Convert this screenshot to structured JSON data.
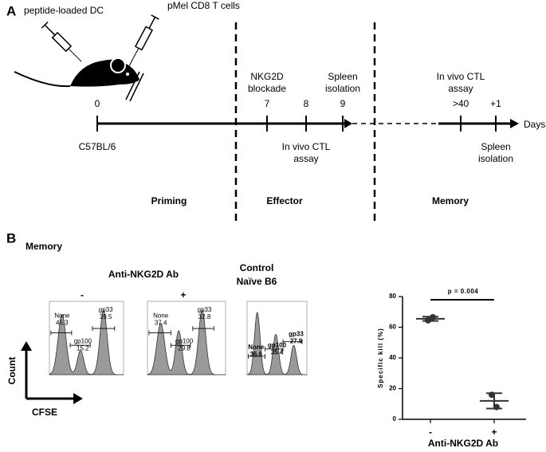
{
  "panel_a": {
    "label": "A",
    "injections": [
      "peptide-loaded DC",
      "pMel CD8 T cells"
    ],
    "timeline": {
      "ticks": [
        "0",
        "7",
        "8",
        "9",
        ">40",
        "+1"
      ],
      "unit": "Days",
      "strain": "C57BL/6",
      "events": [
        {
          "lines": [
            "NKG2D",
            "blockade"
          ]
        },
        {
          "lines": [
            "Spleen",
            "isolation"
          ]
        },
        {
          "lines": [
            "In vivo CTL",
            "assay"
          ]
        },
        {
          "lines": [
            "In vivo CTL",
            "assay"
          ]
        },
        {
          "lines": [
            "Spleen",
            "isolation"
          ]
        }
      ]
    },
    "phases": [
      "Priming",
      "Effector",
      "Memory"
    ]
  },
  "panel_b": {
    "label": "B",
    "subtitle": "Memory",
    "treatment_header": "Anti-NKG2D Ab",
    "treatment_levels": [
      "-",
      "+"
    ],
    "control_header": [
      "Control",
      "Naïve B6"
    ],
    "axis_count": "Count",
    "axis_cfse": "CFSE",
    "histograms": [
      {
        "gates": [
          {
            "name": "None",
            "value": "45.3"
          },
          {
            "name": "gp100",
            "value": "15.2"
          },
          {
            "name": "gp33",
            "value": "39.5"
          }
        ]
      },
      {
        "gates": [
          {
            "name": "None",
            "value": "37.4"
          },
          {
            "name": "gp100",
            "value": "29.8"
          },
          {
            "name": "gp33",
            "value": "32.8"
          }
        ]
      },
      {
        "gates": [
          {
            "name": "None",
            "value": "36.6"
          },
          {
            "name": "gp100",
            "value": "35.4"
          },
          {
            "name": "gp33",
            "value": "27.9"
          }
        ]
      }
    ],
    "chart": {
      "type": "scatter",
      "ylabel": "Specific kill (%)",
      "xlabel": "Anti-NKG2D Ab",
      "categories": [
        "-",
        "+"
      ],
      "values": [
        [
          64.5,
          66.5
        ],
        [
          16,
          8
        ]
      ],
      "mean": [
        65.5,
        12
      ],
      "sd": [
        1.4,
        5
      ],
      "ylim": [
        0,
        80
      ],
      "yticks": [
        0,
        20,
        40,
        60,
        80
      ],
      "annotation": "p = 0.004",
      "color": "#333333"
    }
  }
}
